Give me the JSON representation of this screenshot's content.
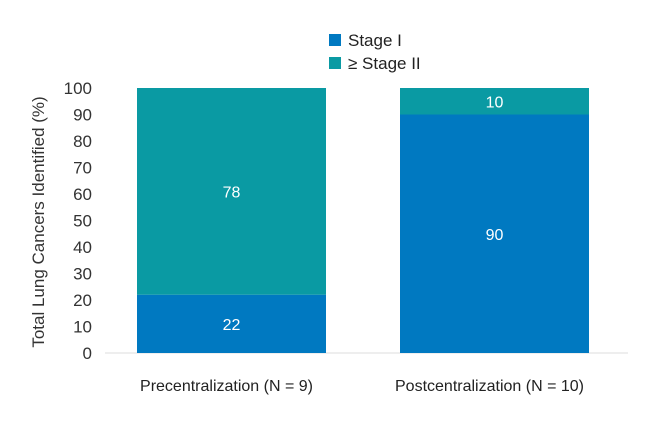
{
  "chart_data": {
    "type": "bar",
    "stacked": true,
    "categories": [
      "Precentralization (N = 9)",
      "Postcentralization (N = 10)"
    ],
    "series": [
      {
        "name": "Stage I",
        "values": [
          22,
          90
        ],
        "color": "#0079c1"
      },
      {
        "name": "≥ Stage II",
        "values": [
          78,
          10
        ],
        "color": "#0a9aa3"
      }
    ],
    "ylabel": "Total Lung Cancers Identified (%)",
    "xlabel": "",
    "ylim": [
      0,
      100
    ],
    "yticks": [
      0,
      10,
      20,
      30,
      40,
      50,
      60,
      70,
      80,
      90,
      100
    ],
    "grid": false,
    "legend": "top-center"
  }
}
